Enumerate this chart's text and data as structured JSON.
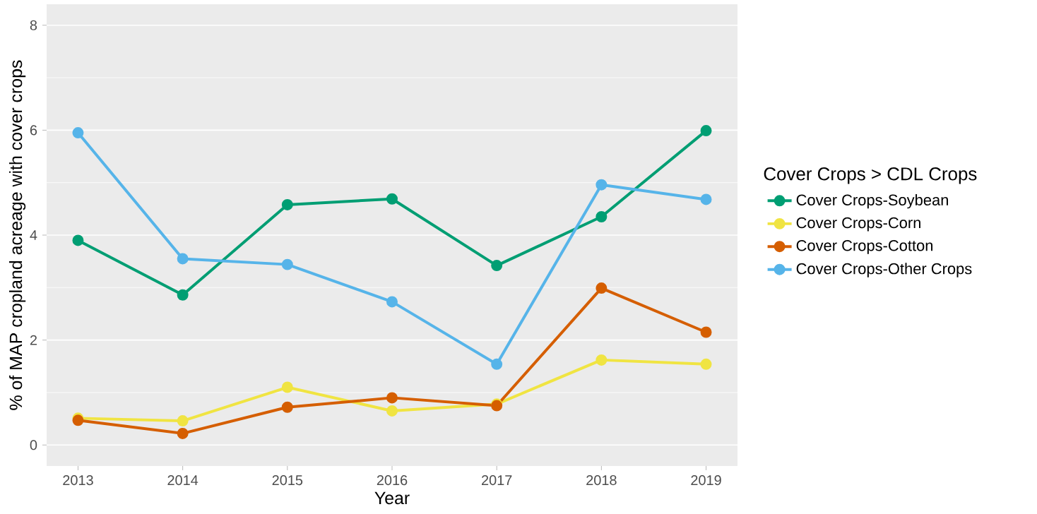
{
  "chart_data": {
    "type": "line",
    "xlabel": "Year",
    "ylabel": "% of MAP cropland acreage with cover crops",
    "legend_title": "Cover Crops > CDL Crops",
    "x": [
      2013,
      2014,
      2015,
      2016,
      2017,
      2018,
      2019
    ],
    "series": [
      {
        "name": "Cover Crops-Soybean",
        "color": "#009e73",
        "values": [
          3.9,
          2.86,
          4.58,
          4.69,
          3.42,
          4.35,
          5.99
        ]
      },
      {
        "name": "Cover Crops-Corn",
        "color": "#f0e442",
        "values": [
          0.51,
          0.46,
          1.1,
          0.65,
          0.78,
          1.62,
          1.54
        ]
      },
      {
        "name": "Cover Crops-Cotton",
        "color": "#d55e00",
        "values": [
          0.47,
          0.22,
          0.72,
          0.9,
          0.75,
          2.99,
          2.15
        ]
      },
      {
        "name": "Cover Crops-Other Crops",
        "color": "#56b4e9",
        "values": [
          5.95,
          3.55,
          3.44,
          2.73,
          1.54,
          4.96,
          4.68
        ]
      }
    ],
    "xlim": [
      2012.7,
      2019.3
    ],
    "ylim": [
      -0.4,
      8.4
    ],
    "xticks": [
      2013,
      2014,
      2015,
      2016,
      2017,
      2018,
      2019
    ],
    "yticks": [
      0,
      2,
      4,
      6,
      8
    ],
    "grid": "y",
    "legend": "right",
    "marker": "circle",
    "line_style": "solid"
  }
}
